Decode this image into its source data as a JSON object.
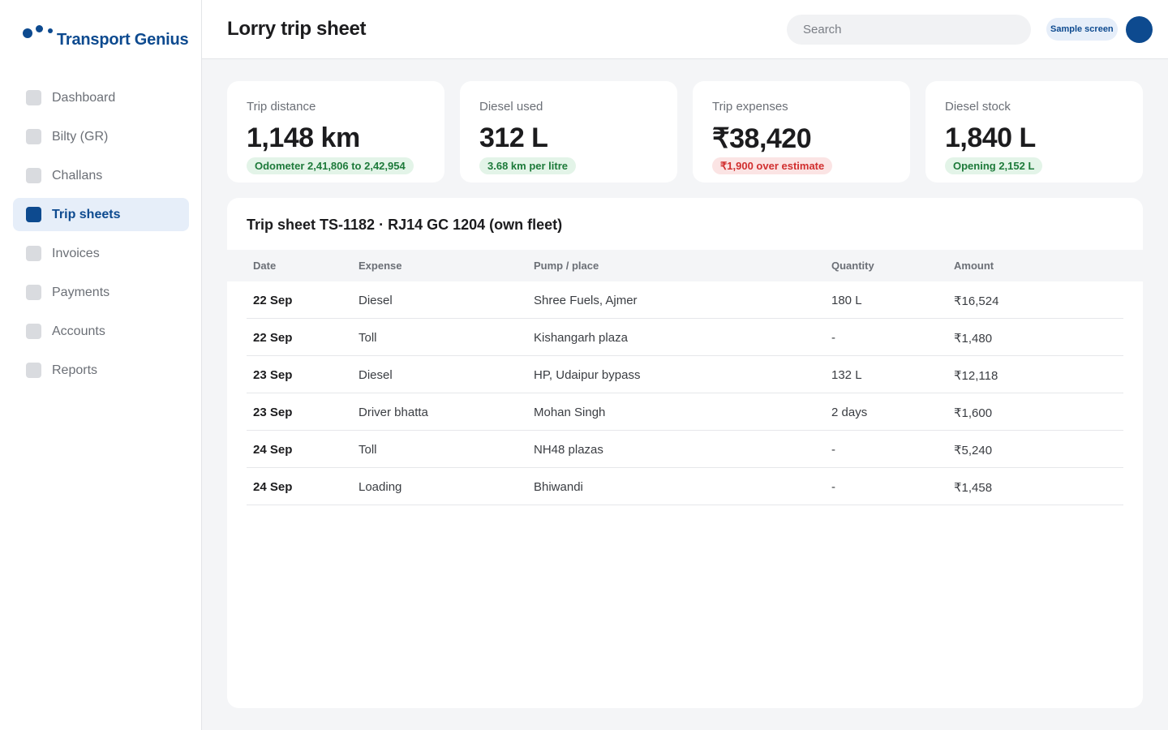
{
  "app": {
    "name": "Transport Genius"
  },
  "sidebar": {
    "items": [
      {
        "label": "Dashboard",
        "active": false
      },
      {
        "label": "Bilty (GR)",
        "active": false
      },
      {
        "label": "Challans",
        "active": false
      },
      {
        "label": "Trip sheets",
        "active": true
      },
      {
        "label": "Invoices",
        "active": false
      },
      {
        "label": "Payments",
        "active": false
      },
      {
        "label": "Accounts",
        "active": false
      },
      {
        "label": "Reports",
        "active": false
      }
    ]
  },
  "header": {
    "title": "Lorry trip sheet",
    "search_placeholder": "Search",
    "badge": "Sample screen"
  },
  "stats": [
    {
      "label": "Trip distance",
      "value": "1,148 km",
      "pill": "Odometer 2,41,806 to 2,42,954",
      "tone": "green"
    },
    {
      "label": "Diesel used",
      "value": "312 L",
      "pill": "3.68 km per litre",
      "tone": "green"
    },
    {
      "label": "Trip expenses",
      "value": "₹38,420",
      "pill": "₹1,900 over estimate",
      "tone": "red"
    },
    {
      "label": "Diesel stock",
      "value": "1,840 L",
      "pill": "Opening 2,152 L",
      "tone": "green"
    }
  ],
  "table": {
    "title": "Trip sheet TS-1182 · RJ14 GC 1204 (own fleet)",
    "columns": [
      "Date",
      "Expense",
      "Pump / place",
      "Quantity",
      "Amount"
    ],
    "rows": [
      [
        "22 Sep",
        "Diesel",
        "Shree Fuels, Ajmer",
        "180 L",
        "₹16,524"
      ],
      [
        "22 Sep",
        "Toll",
        "Kishangarh plaza",
        "-",
        "₹1,480"
      ],
      [
        "23 Sep",
        "Diesel",
        "HP, Udaipur bypass",
        "132 L",
        "₹12,118"
      ],
      [
        "23 Sep",
        "Driver bhatta",
        "Mohan Singh",
        "2 days",
        "₹1,600"
      ],
      [
        "24 Sep",
        "Toll",
        "NH48 plazas",
        "-",
        "₹5,240"
      ],
      [
        "24 Sep",
        "Loading",
        "Bhiwandi",
        "-",
        "₹1,458"
      ]
    ]
  },
  "colors": {
    "brand": "#0d4a8f",
    "positive": "#1d7a3a",
    "negative": "#d12f2f"
  }
}
